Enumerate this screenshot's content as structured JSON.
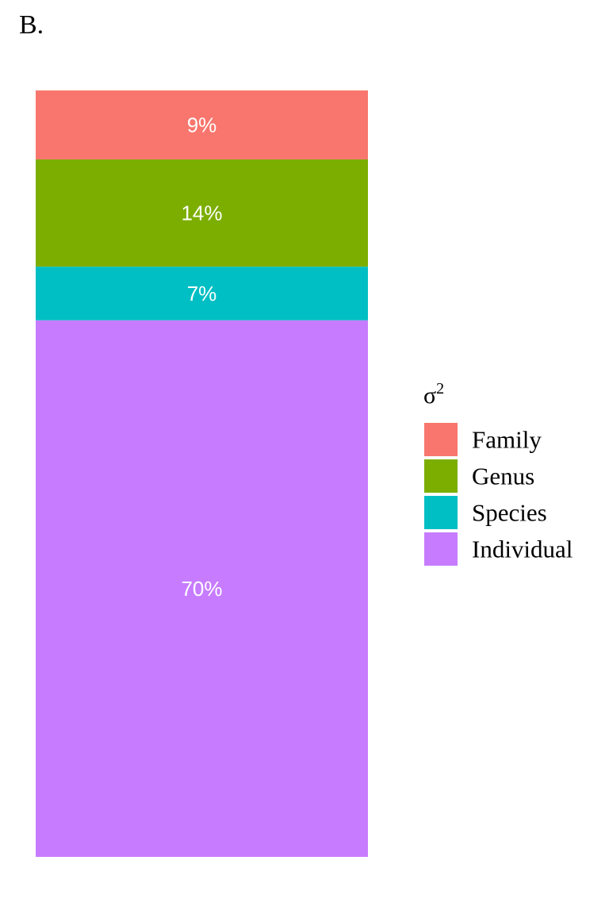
{
  "panel_tag": "B.",
  "legend": {
    "title_symbol": "σ",
    "title_superscript": "2"
  },
  "chart_data": {
    "type": "bar",
    "stacked": true,
    "orientation": "vertical",
    "categories": [
      ""
    ],
    "series": [
      {
        "name": "Family",
        "values": [
          9
        ],
        "label": "9%",
        "color": "#F8766D"
      },
      {
        "name": "Genus",
        "values": [
          14
        ],
        "label": "14%",
        "color": "#7CAE00"
      },
      {
        "name": "Species",
        "values": [
          7
        ],
        "label": "7%",
        "color": "#00BFC4"
      },
      {
        "name": "Individual",
        "values": [
          70
        ],
        "label": "70%",
        "color": "#C77CFF"
      }
    ],
    "unit": "%",
    "ylim": [
      0,
      100
    ],
    "grid": false,
    "legend_position": "right"
  }
}
